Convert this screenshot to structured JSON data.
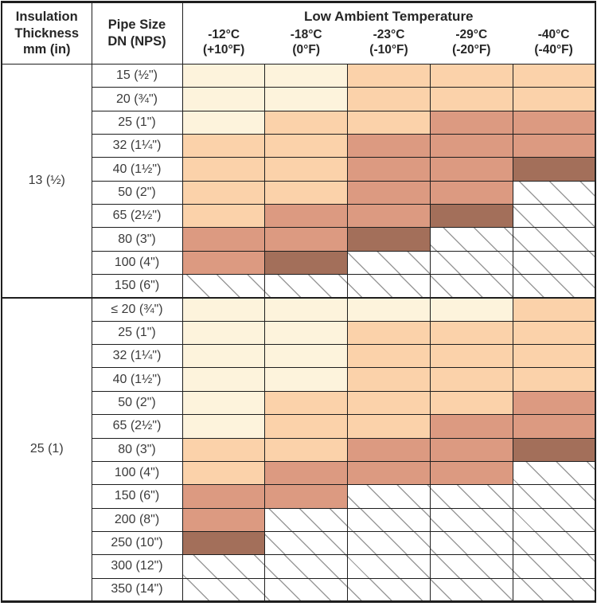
{
  "colors": {
    "cream": "#fdf3dc",
    "peach": "#fbd2aa",
    "salmon": "#dc9a81",
    "dark_brown": "#a36f5a",
    "hatch_line": "#9a9a9a",
    "grid_line": "#1e1e1e",
    "text": "#262626"
  },
  "header": {
    "insulation": "Insulation\nThickness\nmm (in)",
    "pipe_size": "Pipe Size\nDN (NPS)",
    "group_title": "Low Ambient Temperature",
    "temps": [
      "-12°C\n(+10°F)",
      "-18°C\n(0°F)",
      "-23°C\n(-10°F)",
      "-29°C\n(-20°F)",
      "-40°C\n(-40°F)"
    ]
  },
  "cell_legend": {
    "C": "cream",
    "P": "peach",
    "S": "salmon",
    "D": "dark_brown",
    "H": "not-applicable-hatched"
  },
  "sections": [
    {
      "insulation": "13 (½)",
      "rows": [
        {
          "pipe": "15 (½\")",
          "cells": [
            "C",
            "C",
            "P",
            "P",
            "P"
          ]
        },
        {
          "pipe": "20 (¾\")",
          "cells": [
            "C",
            "C",
            "P",
            "P",
            "P"
          ]
        },
        {
          "pipe": "25 (1\")",
          "cells": [
            "C",
            "P",
            "P",
            "S",
            "S"
          ]
        },
        {
          "pipe": "32 (1¼\")",
          "cells": [
            "P",
            "P",
            "S",
            "S",
            "S"
          ]
        },
        {
          "pipe": "40 (1½\")",
          "cells": [
            "P",
            "P",
            "S",
            "S",
            "D"
          ]
        },
        {
          "pipe": "50 (2\")",
          "cells": [
            "P",
            "P",
            "S",
            "S",
            "H"
          ]
        },
        {
          "pipe": "65 (2½\")",
          "cells": [
            "P",
            "S",
            "S",
            "D",
            "H"
          ]
        },
        {
          "pipe": "80 (3\")",
          "cells": [
            "S",
            "S",
            "D",
            "H",
            "H"
          ]
        },
        {
          "pipe": "100 (4\")",
          "cells": [
            "S",
            "D",
            "H",
            "H",
            "H"
          ]
        },
        {
          "pipe": "150 (6\")",
          "cells": [
            "H",
            "H",
            "H",
            "H",
            "H"
          ]
        }
      ]
    },
    {
      "insulation": "25 (1)",
      "rows": [
        {
          "pipe": "≤ 20 (¾\")",
          "cells": [
            "C",
            "C",
            "C",
            "C",
            "P"
          ]
        },
        {
          "pipe": "25 (1\")",
          "cells": [
            "C",
            "C",
            "P",
            "P",
            "P"
          ]
        },
        {
          "pipe": "32 (1¼\")",
          "cells": [
            "C",
            "C",
            "P",
            "P",
            "P"
          ]
        },
        {
          "pipe": "40 (1½\")",
          "cells": [
            "C",
            "C",
            "P",
            "P",
            "P"
          ]
        },
        {
          "pipe": "50 (2\")",
          "cells": [
            "C",
            "P",
            "P",
            "P",
            "S"
          ]
        },
        {
          "pipe": "65 (2½\")",
          "cells": [
            "C",
            "P",
            "P",
            "S",
            "S"
          ]
        },
        {
          "pipe": "80 (3\")",
          "cells": [
            "P",
            "P",
            "S",
            "S",
            "D"
          ]
        },
        {
          "pipe": "100 (4\")",
          "cells": [
            "P",
            "S",
            "S",
            "S",
            "H"
          ]
        },
        {
          "pipe": "150 (6\")",
          "cells": [
            "S",
            "S",
            "H",
            "H",
            "H"
          ]
        },
        {
          "pipe": "200 (8\")",
          "cells": [
            "S",
            "H",
            "H",
            "H",
            "H"
          ]
        },
        {
          "pipe": "250 (10\")",
          "cells": [
            "D",
            "H",
            "H",
            "H",
            "H"
          ]
        },
        {
          "pipe": "300 (12\")",
          "cells": [
            "H",
            "H",
            "H",
            "H",
            "H"
          ]
        },
        {
          "pipe": "350 (14\")",
          "cells": [
            "H",
            "H",
            "H",
            "H",
            "H"
          ]
        }
      ]
    }
  ]
}
